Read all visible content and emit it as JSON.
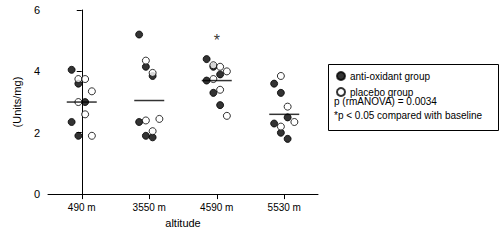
{
  "chart_data": {
    "type": "scatter",
    "categories": [
      "490 m",
      "3550 m",
      "4590 m",
      "5530 m"
    ],
    "x_label": "altitude",
    "y_label": "(Units/mg)",
    "ylim": [
      0,
      6
    ],
    "yticks": [
      0,
      2,
      4,
      6
    ],
    "series": [
      {
        "name": "anti-oxidant group",
        "color": "#000000",
        "marker": "filled",
        "values": [
          [
            4.05,
            3.6,
            3.0,
            2.35,
            1.9
          ],
          [
            5.2,
            4.15,
            3.85,
            2.35,
            1.9,
            1.85
          ],
          [
            4.4,
            4.15,
            3.9,
            3.7,
            3.3,
            2.9
          ],
          [
            3.6,
            3.3,
            2.5,
            2.3,
            2.0,
            1.8
          ]
        ]
      },
      {
        "name": "placebo group",
        "color": "#000000",
        "marker": "open",
        "values": [
          [
            3.75,
            3.75,
            3.35,
            3.0,
            2.6,
            1.9
          ],
          [
            4.35,
            3.95,
            2.45,
            2.4,
            2.05
          ],
          [
            4.2,
            4.15,
            4.0,
            3.75,
            3.4,
            2.55
          ],
          [
            3.85,
            2.85,
            2.35,
            2.2
          ]
        ]
      }
    ],
    "center_values": [
      3.0,
      3.05,
      3.7,
      2.6
    ],
    "annotations": [
      {
        "text": "*",
        "category": "4590 m",
        "y": 5.0
      }
    ],
    "legend_notes": [
      "p (rmANOVA) = 0.0034",
      "*p < 0.05 compared with baseline"
    ],
    "legend": "right"
  }
}
